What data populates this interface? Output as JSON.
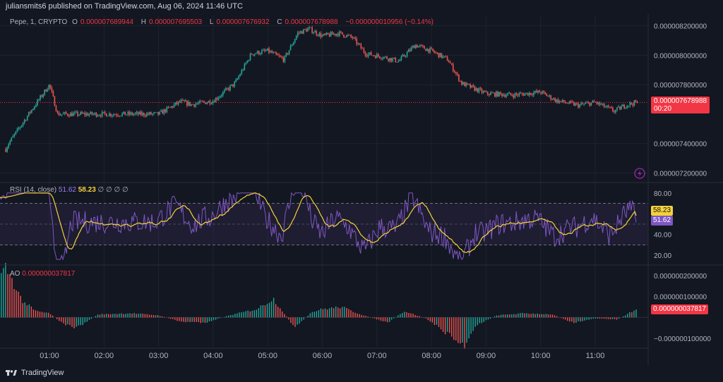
{
  "header": {
    "publish_line": "juliansmits6 published on TradingView.com, Aug 06, 2024 11:46 UTC"
  },
  "price_legend": {
    "symbol": "Pepe, 1, CRYPTO",
    "o_label": "O",
    "o_value": "0.000007689944",
    "h_label": "H",
    "h_value": "0.000007695503",
    "l_label": "L",
    "l_value": "0.000007676932",
    "c_label": "C",
    "c_value": "0.000007678988",
    "change": "−0.000000010956 (−0.14%)"
  },
  "last_price_tag": {
    "price": "0.000007678988",
    "countdown": "00:20"
  },
  "rsi_legend": {
    "label": "RSI (14, close)",
    "rsi_value": "51.62",
    "ma_value": "58.23",
    "extras": "∅ ∅ ∅ ∅"
  },
  "ao_legend": {
    "label": "AO",
    "value": "0.000000037817"
  },
  "brand": {
    "name": "TradingView"
  },
  "colors": {
    "background": "#131722",
    "up": "#26a69a",
    "down": "#ef5350",
    "rsi_line": "#7e57c2",
    "rsi_ma": "#f5d13a",
    "last_price": "#f23645"
  },
  "chart_data": [
    {
      "type": "candlestick",
      "name": "Pepe, 1, CRYPTO",
      "x_ticks": [
        "01:00",
        "02:00",
        "03:00",
        "04:00",
        "05:00",
        "06:00",
        "07:00",
        "08:00",
        "09:00",
        "10:00",
        "11:00"
      ],
      "y_ticks": [
        "0.000008200000",
        "0.000008000000",
        "0.000007800000",
        "0.000007400000",
        "0.000007200000"
      ],
      "ylim": [
        7.14e-06,
        8.27e-06
      ],
      "close_path_x": [
        0,
        0.25,
        0.62,
        1.0,
        1.15,
        1.5,
        2.0,
        2.5,
        3.0,
        3.4,
        3.6,
        4.0,
        4.4,
        4.7,
        5.0,
        5.3,
        5.55,
        5.75,
        6.0,
        6.3,
        6.55,
        6.8,
        7.1,
        7.4,
        7.7,
        8.0,
        8.3,
        8.55,
        9.0,
        9.5,
        10.0,
        10.3,
        10.7,
        11.0,
        11.35,
        11.55,
        11.75
      ],
      "close_path_y": [
        7.21e-06,
        7.4e-06,
        7.6e-06,
        7.8e-06,
        7.6e-06,
        7.6e-06,
        7.6e-06,
        7.6e-06,
        7.6e-06,
        7.685e-06,
        7.665e-06,
        7.69e-06,
        7.81e-06,
        8.01e-06,
        8.03e-06,
        7.97e-06,
        8.15e-06,
        8.18e-06,
        8.13e-06,
        8.15e-06,
        8.12e-06,
        8.01e-06,
        7.99e-06,
        7.96e-06,
        8.07e-06,
        8.03e-06,
        7.97e-06,
        7.81e-06,
        7.74e-06,
        7.73e-06,
        7.75e-06,
        7.69e-06,
        7.66e-06,
        7.68e-06,
        7.62e-06,
        7.66e-06,
        7.68e-06
      ],
      "last_price": 7.678988e-06
    },
    {
      "type": "line",
      "name": "RSI (14, close)",
      "y_ticks": [
        "80.00",
        "40.00",
        "20.00"
      ],
      "ylim": [
        12,
        88
      ],
      "bands": [
        30,
        50,
        70
      ],
      "rsi_value": 51.62,
      "ma_value": 58.23
    },
    {
      "type": "bar",
      "name": "AO",
      "y_ticks": [
        "0.000000200000",
        "0.000000100000",
        "0.000000000000",
        "−0.000000100000"
      ],
      "ylim": [
        -1.4e-07,
        2.4e-07
      ],
      "value": 3.7817e-08,
      "hist_x": [
        0,
        0.2,
        0.5,
        0.75,
        1.0,
        1.25,
        1.5,
        1.9,
        2.5,
        3.0,
        3.4,
        3.85,
        4.3,
        4.8,
        5.1,
        5.5,
        5.8,
        6.0,
        6.35,
        6.7,
        7.2,
        7.5,
        7.9,
        8.2,
        8.6,
        8.8,
        9.2,
        9.7,
        10.2,
        10.6,
        11.0,
        11.4,
        11.75
      ],
      "hist_y": [
        1.5e-07,
        2.4e-07,
        8e-08,
        3e-08,
        2e-08,
        -3e-08,
        -5e-08,
        1.5e-08,
        2e-08,
        1e-08,
        -2e-08,
        -2.5e-08,
        1e-08,
        4e-08,
        9e-08,
        -5e-08,
        2.5e-08,
        4e-08,
        5e-08,
        1.5e-08,
        -2.5e-08,
        3e-08,
        -5e-09,
        -6e-08,
        -1.4e-07,
        -4e-08,
        1e-08,
        2e-08,
        1.5e-08,
        -2.5e-08,
        -5e-09,
        -1e-08,
        3.7817e-08
      ]
    }
  ]
}
